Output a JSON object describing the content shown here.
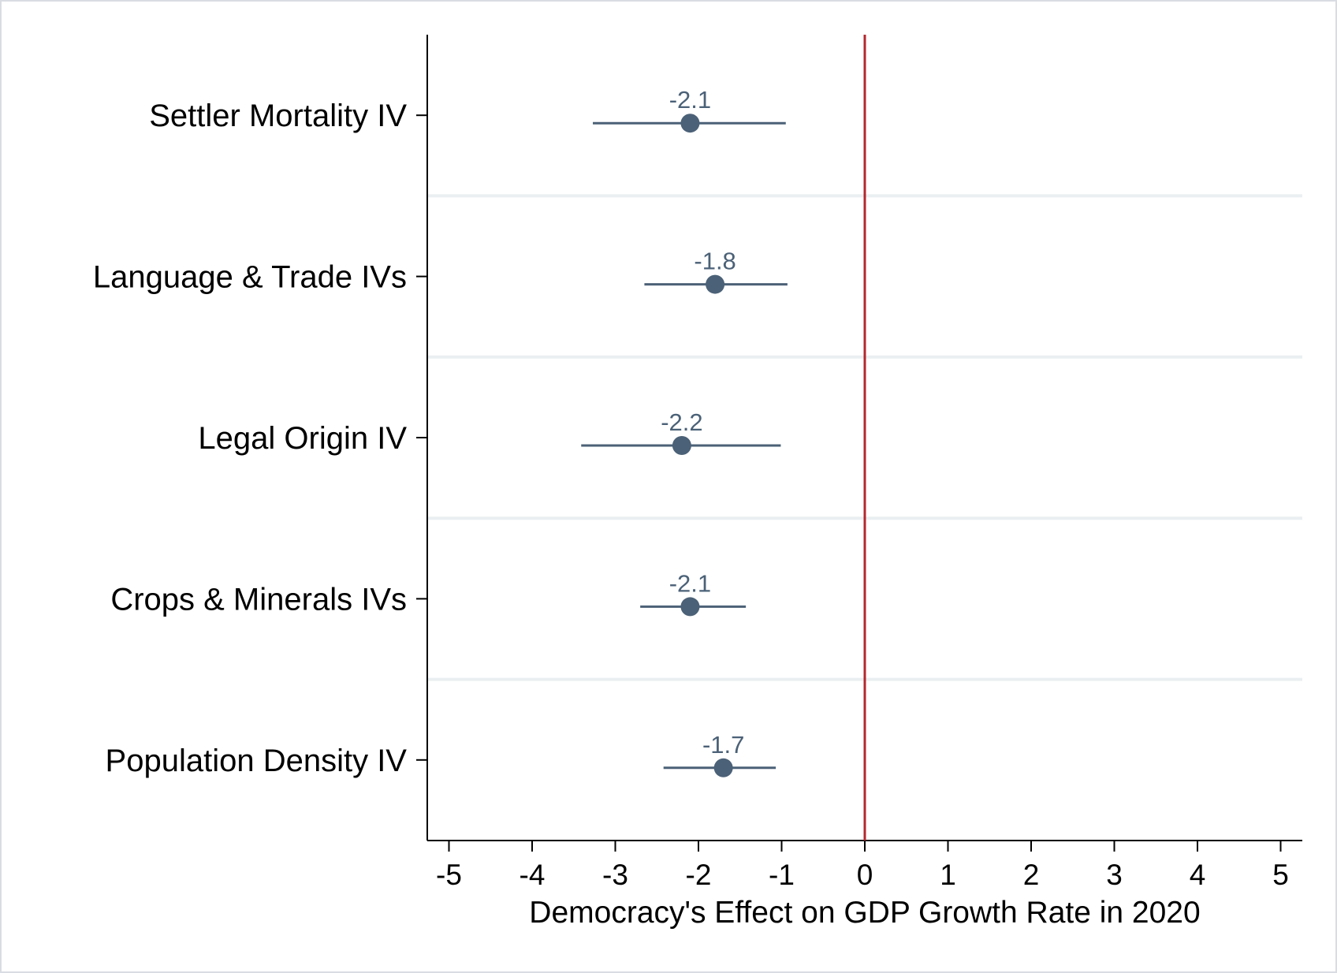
{
  "chart_data": {
    "type": "scatter",
    "orientation": "horizontal",
    "title": "",
    "xlabel": "Democracy's Effect on GDP Growth Rate in 2020",
    "ylabel": "",
    "xlim": [
      -5.27,
      5.27
    ],
    "x_ticks": [
      {
        "value": -5,
        "label": "-5"
      },
      {
        "value": -4,
        "label": "-4"
      },
      {
        "value": -3,
        "label": "-3"
      },
      {
        "value": -2,
        "label": "-2"
      },
      {
        "value": -1,
        "label": "-1"
      },
      {
        "value": 0,
        "label": "0"
      },
      {
        "value": 1,
        "label": "1"
      },
      {
        "value": 2,
        "label": "2"
      },
      {
        "value": 3,
        "label": "3"
      },
      {
        "value": 4,
        "label": "4"
      },
      {
        "value": 5,
        "label": "5"
      }
    ],
    "reference_line": {
      "x": 0,
      "color": "#b2282e"
    },
    "grid": false,
    "legend": "none",
    "series_color": "#4b6177",
    "points": [
      {
        "category": "Settler Mortality IV",
        "estimate": -2.1,
        "ci": [
          -3.27,
          -0.95
        ],
        "label": "-2.1"
      },
      {
        "category": "Language & Trade IVs",
        "estimate": -1.8,
        "ci": [
          -2.65,
          -0.93
        ],
        "label": "-1.8"
      },
      {
        "category": "Legal Origin IV",
        "estimate": -2.2,
        "ci": [
          -3.41,
          -1.01
        ],
        "label": "-2.2"
      },
      {
        "category": "Crops & Minerals IVs",
        "estimate": -2.1,
        "ci": [
          -2.7,
          -1.43
        ],
        "label": "-2.1"
      },
      {
        "category": "Population Density IV",
        "estimate": -1.7,
        "ci": [
          -2.42,
          -1.07
        ],
        "label": "-1.7"
      }
    ]
  }
}
